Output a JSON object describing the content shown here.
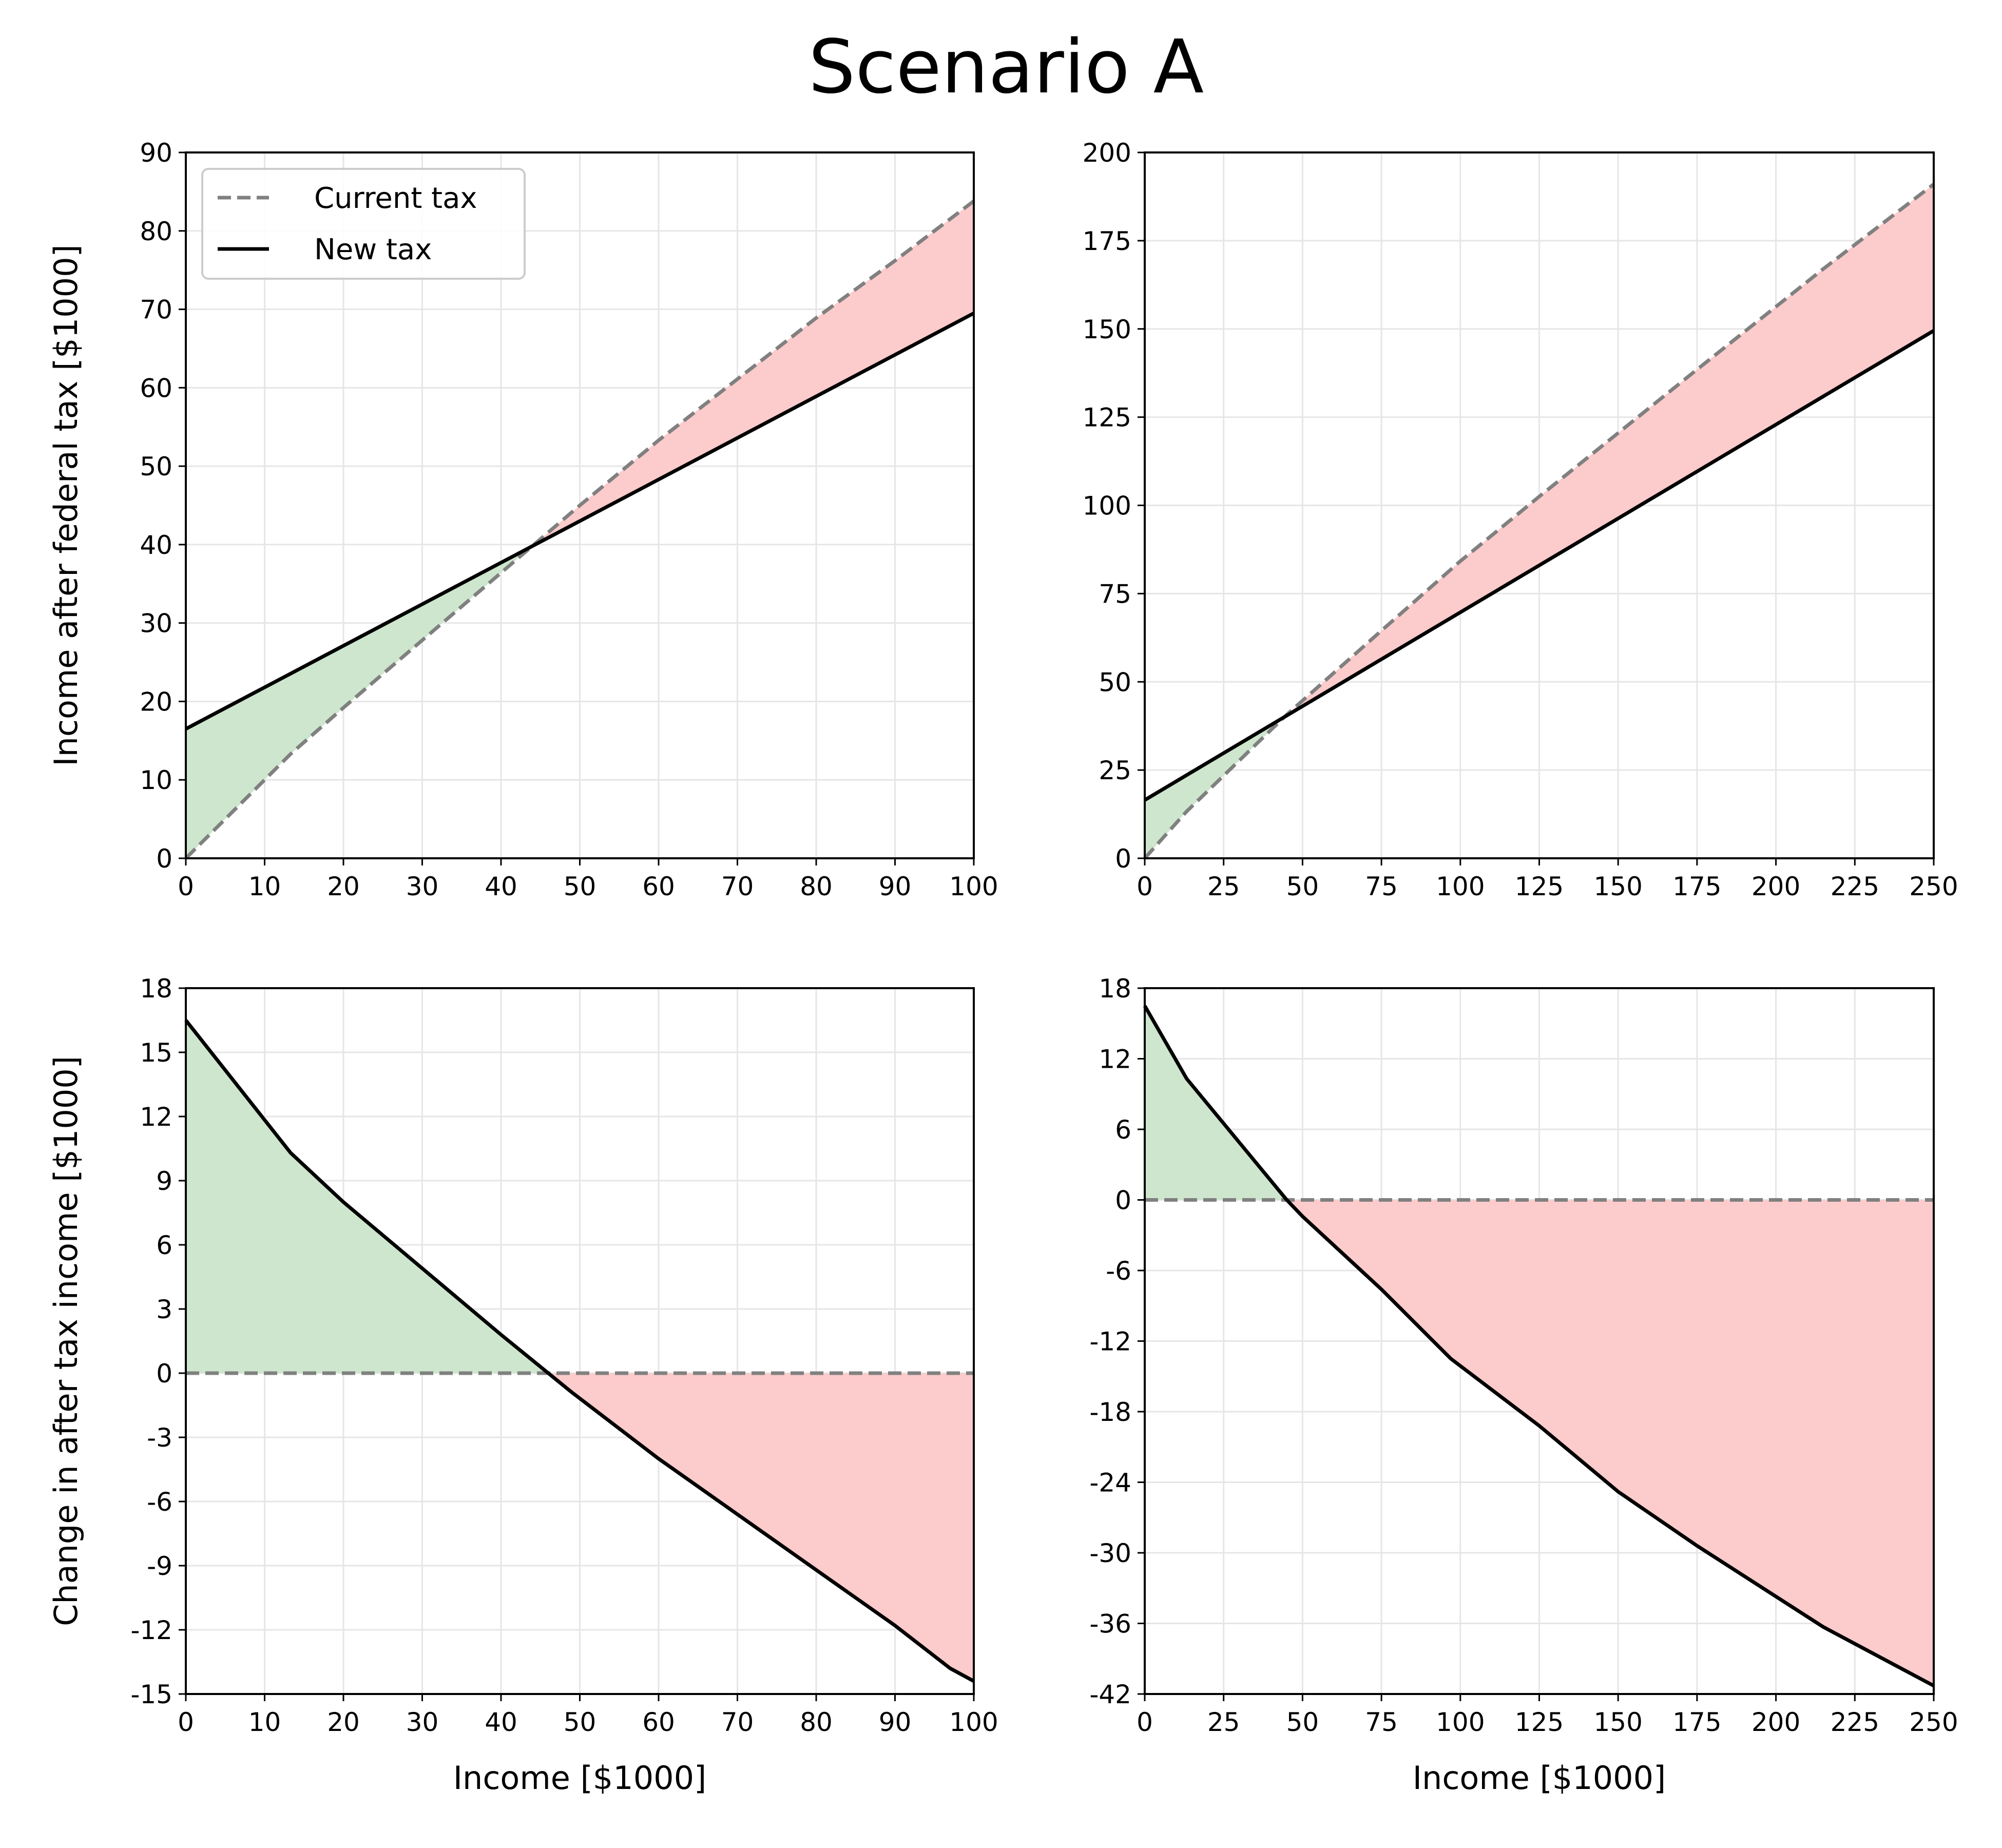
{
  "title": "Scenario A",
  "colors": {
    "current": "#808080",
    "new": "#000000",
    "gain": "#cde6cd",
    "loss": "#fccbcb",
    "grid": "#e6e6e6"
  },
  "legend": {
    "current": "Current tax",
    "new": "New tax",
    "placement": "upper-left"
  },
  "chart_data": [
    {
      "type": "line",
      "title": "",
      "xlabel": "",
      "ylabel": "Income after federal tax [$1000]",
      "xlim": [
        0,
        100
      ],
      "ylim": [
        0,
        90
      ],
      "xticks": [
        0,
        10,
        20,
        30,
        40,
        50,
        60,
        70,
        80,
        90,
        100
      ],
      "yticks": [
        0,
        10,
        20,
        30,
        40,
        50,
        60,
        70,
        80,
        90
      ],
      "grid": true,
      "legend": true,
      "series": [
        {
          "name": "Current tax",
          "style": "dashed",
          "x": [
            0,
            13.3,
            20,
            30,
            40,
            45,
            50,
            60,
            70,
            80,
            90,
            100
          ],
          "y": [
            0,
            13.3,
            19.2,
            27.8,
            36.4,
            40.7,
            45,
            53.3,
            61.1,
            68.9,
            76.2,
            83.8
          ]
        },
        {
          "name": "New tax",
          "style": "solid",
          "x": [
            0,
            100
          ],
          "y": [
            16.5,
            69.5
          ]
        }
      ]
    },
    {
      "type": "line",
      "title": "",
      "xlabel": "",
      "ylabel": "",
      "xlim": [
        0,
        250
      ],
      "ylim": [
        0,
        200
      ],
      "xticks": [
        0,
        25,
        50,
        75,
        100,
        125,
        150,
        175,
        200,
        225,
        250
      ],
      "yticks": [
        0,
        25,
        50,
        75,
        100,
        125,
        150,
        175,
        200
      ],
      "grid": true,
      "legend": false,
      "series": [
        {
          "name": "Current tax",
          "style": "dashed",
          "x": [
            0,
            13.3,
            45,
            75,
            100,
            125,
            150,
            175,
            200,
            215,
            250
          ],
          "y": [
            0,
            13.3,
            40.7,
            64.5,
            84.2,
            102.5,
            120.5,
            138.5,
            156.3,
            167,
            191
          ]
        },
        {
          "name": "New tax",
          "style": "solid",
          "x": [
            0,
            250
          ],
          "y": [
            16.5,
            149.5
          ]
        }
      ]
    },
    {
      "type": "line",
      "title": "",
      "xlabel": "Income [$1000]",
      "ylabel": "Change in after tax income [$1000]",
      "xlim": [
        0,
        100
      ],
      "ylim": [
        -15,
        18
      ],
      "xticks": [
        0,
        10,
        20,
        30,
        40,
        50,
        60,
        70,
        80,
        90,
        100
      ],
      "yticks": [
        -15,
        -12,
        -9,
        -6,
        -3,
        0,
        3,
        6,
        9,
        12,
        15,
        18
      ],
      "grid": true,
      "legend": false,
      "series": [
        {
          "name": "Current tax",
          "style": "dashed",
          "x": [
            0,
            100
          ],
          "y": [
            0,
            0
          ]
        },
        {
          "name": "New tax",
          "style": "solid",
          "x": [
            0,
            13.3,
            20,
            30,
            40,
            46,
            49,
            60,
            70,
            80,
            90,
            97,
            100
          ],
          "y": [
            16.5,
            10.3,
            8.0,
            4.9,
            1.8,
            0,
            -0.9,
            -4.0,
            -6.6,
            -9.2,
            -11.8,
            -13.8,
            -14.4
          ]
        }
      ]
    },
    {
      "type": "line",
      "title": "",
      "xlabel": "Income [$1000]",
      "ylabel": "",
      "xlim": [
        0,
        250
      ],
      "ylim": [
        -42,
        18
      ],
      "xticks": [
        0,
        25,
        50,
        75,
        100,
        125,
        150,
        175,
        200,
        225,
        250
      ],
      "yticks": [
        -42,
        -36,
        -30,
        -24,
        -18,
        -12,
        -6,
        0,
        6,
        12,
        18
      ],
      "grid": true,
      "legend": false,
      "series": [
        {
          "name": "Current tax",
          "style": "dashed",
          "x": [
            0,
            250
          ],
          "y": [
            0,
            0
          ]
        },
        {
          "name": "New tax",
          "style": "solid",
          "x": [
            0,
            13.3,
            45,
            50,
            75,
            97,
            125,
            150,
            175,
            215,
            250
          ],
          "y": [
            16.5,
            10.3,
            0,
            -1.4,
            -7.6,
            -13.5,
            -19.2,
            -24.8,
            -29.4,
            -36.3,
            -41.3
          ]
        }
      ]
    }
  ]
}
